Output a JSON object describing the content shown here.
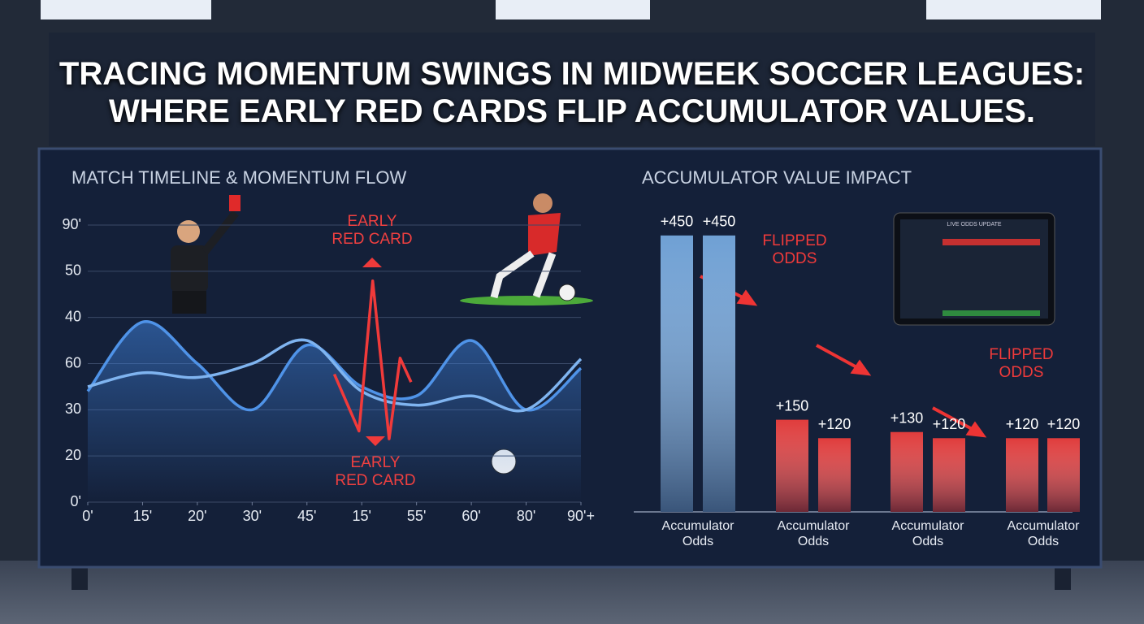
{
  "header": {
    "title": "TRACING MOMENTUM SWINGS IN MIDWEEK SOCCER LEAGUES: WHERE EARLY RED CARDS FLIP ACCUMULATOR VALUES."
  },
  "chart_data": [
    {
      "type": "line",
      "title": "MATCH TIMELINE & MOMENTUM FLOW",
      "xlim": [
        0,
        9
      ],
      "xticks": [
        {
          "value": 0,
          "label": "0'"
        },
        {
          "value": 1,
          "label": "15'"
        },
        {
          "value": 2,
          "label": "20'"
        },
        {
          "value": 3,
          "label": "30'"
        },
        {
          "value": 4,
          "label": "45'"
        },
        {
          "value": 5,
          "label": "15'"
        },
        {
          "value": 6,
          "label": "55'"
        },
        {
          "value": 7,
          "label": "60'"
        },
        {
          "value": 8,
          "label": "80'"
        },
        {
          "value": 9,
          "label": "90'+"
        }
      ],
      "ylim": [
        0,
        6
      ],
      "yticks": [
        {
          "value": 0,
          "label": "0'"
        },
        {
          "value": 1,
          "label": "20"
        },
        {
          "value": 2,
          "label": "30"
        },
        {
          "value": 3,
          "label": "60"
        },
        {
          "value": 4,
          "label": "40"
        },
        {
          "value": 5,
          "label": "50"
        },
        {
          "value": 6,
          "label": "90'"
        }
      ],
      "grid": true,
      "series": [
        {
          "color": "#4f93e8",
          "fill": true,
          "x": [
            0,
            1,
            2,
            3,
            4,
            5,
            6,
            7,
            8,
            9
          ],
          "values": [
            2.4,
            3.9,
            3.0,
            2.0,
            3.4,
            2.5,
            2.3,
            3.5,
            2.0,
            2.9
          ]
        },
        {
          "color": "#7fb4f0",
          "fill": false,
          "x": [
            0,
            1,
            2,
            3,
            4,
            5,
            6,
            7,
            8,
            9
          ],
          "values": [
            2.5,
            2.8,
            2.7,
            3.0,
            3.5,
            2.4,
            2.1,
            2.3,
            2.0,
            3.1
          ]
        },
        {
          "color": "#f03a3a",
          "fill": false,
          "x": [
            4.5,
            4.95,
            5.2,
            5.5,
            5.7,
            5.9
          ],
          "values": [
            2.77,
            1.54,
            4.79,
            1.37,
            3.12,
            2.6
          ]
        }
      ],
      "annotations": [
        {
          "text": [
            "EARLY",
            "RED CARD"
          ]
        },
        {
          "text": [
            "EARLY",
            "RED CARD"
          ]
        }
      ]
    },
    {
      "type": "bar",
      "title": "ACCUMULATOR VALUE IMPACT",
      "ylim": [
        0,
        500
      ],
      "groups": [
        "Accumulator Odds",
        "Accumulator Odds",
        "Accumulator Odds",
        "Accumulator Odds"
      ],
      "values": [
        450,
        450,
        150,
        120,
        130,
        120,
        120,
        120
      ],
      "value_labels": [
        "+450",
        "+450",
        "+150",
        "+120",
        "+130",
        "+120",
        "+120",
        "+120"
      ],
      "colors": [
        "#6fa0d4",
        "#6fa0d4",
        "#e03c3c",
        "#e03c3c",
        "#e03c3c",
        "#e03c3c",
        "#e03c3c",
        "#e03c3c"
      ],
      "annotations": [
        "FLIPPED ODDS",
        "FLIPPED ODDS"
      ],
      "inset_title": "LIVE ODDS UPDATE"
    }
  ]
}
